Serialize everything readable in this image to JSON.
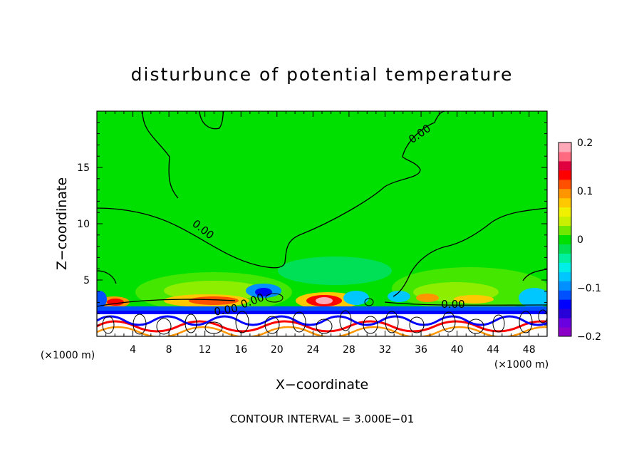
{
  "chart_data": {
    "type": "heatmap",
    "title": "disturbunce of potential temperature",
    "xlabel": "X−coordinate",
    "ylabel": "Z−coordinate",
    "x_unit_label": "(×1000 m)",
    "footer": "CONTOUR INTERVAL = 3.000E−01",
    "xlim": [
      0,
      50
    ],
    "ylim": [
      0,
      20
    ],
    "x_ticks": [
      4,
      8,
      12,
      16,
      20,
      24,
      28,
      32,
      36,
      40,
      44,
      48
    ],
    "y_ticks": [
      5,
      10,
      15
    ],
    "contour_labels": [
      "0.00",
      "0.00",
      "0.00",
      "0.00",
      "0.00"
    ],
    "colorbar": {
      "min": -0.2,
      "max": 0.2,
      "tick_values": [
        0.2,
        0.1,
        0,
        -0.1,
        -0.2
      ],
      "tick_labels": [
        "0.2",
        "0.1",
        "0",
        "−0.1",
        "−0.2"
      ],
      "colors": [
        "#8b00c8",
        "#6a00e0",
        "#2800d8",
        "#0000ff",
        "#0050ff",
        "#0090ff",
        "#00c8ff",
        "#00f0e8",
        "#00f0a0",
        "#00e050",
        "#00e000",
        "#70e800",
        "#c8f000",
        "#f0f000",
        "#ffc800",
        "#ff9600",
        "#ff5000",
        "#ff0000",
        "#e00040",
        "#ff6a80",
        "#ffa8b8"
      ]
    }
  }
}
